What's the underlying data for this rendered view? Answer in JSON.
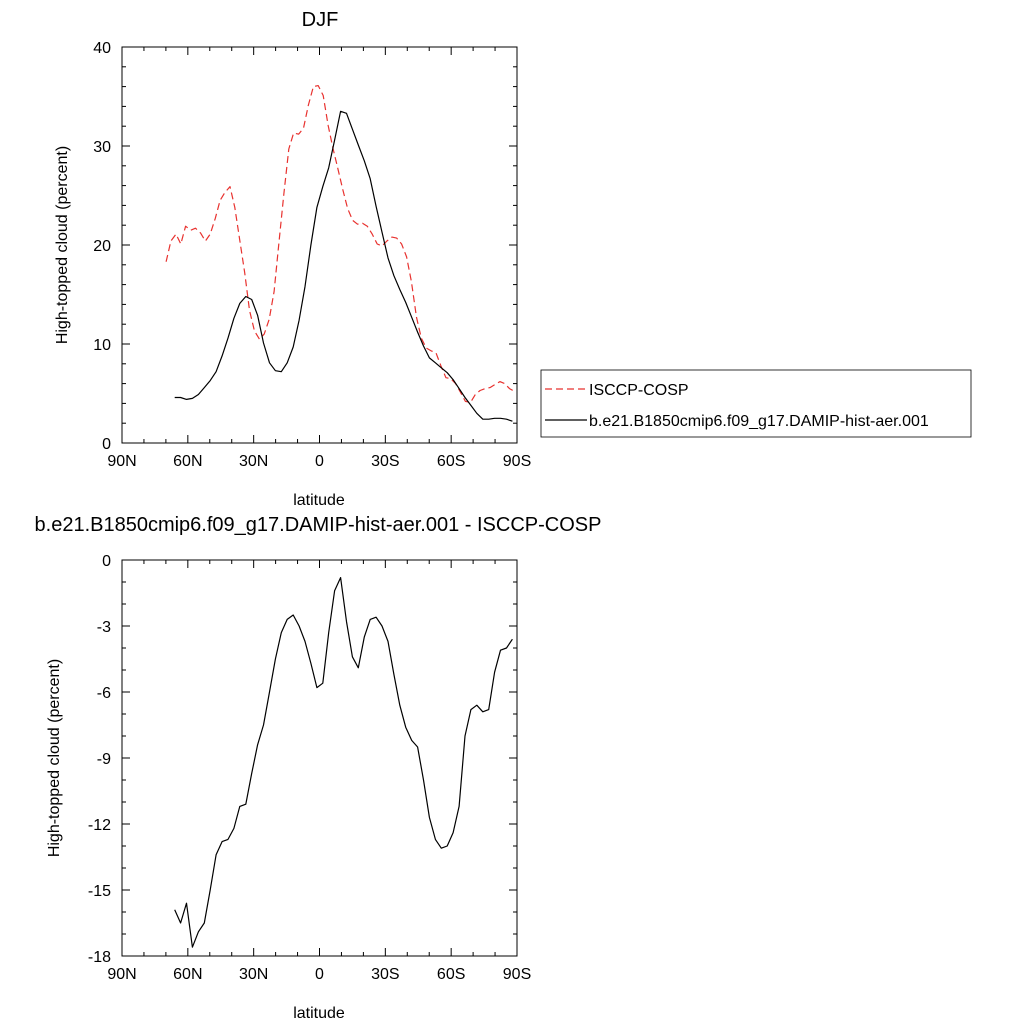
{
  "chart_data": [
    {
      "type": "line",
      "title": "DJF",
      "xlabel": "latitude",
      "ylabel": "High-topped cloud (percent)",
      "xlim": [
        90,
        -90
      ],
      "ylim": [
        0,
        40
      ],
      "xticks": [
        90,
        60,
        30,
        0,
        -30,
        -60,
        -90
      ],
      "xtick_labels": [
        "90N",
        "60N",
        "30N",
        "0",
        "30S",
        "60S",
        "90S"
      ],
      "yticks": [
        0,
        10,
        20,
        30,
        40
      ],
      "ytick_labels": [
        "0",
        "10",
        "20",
        "30",
        "40"
      ],
      "grid": false,
      "legend_position": "right, outside plot",
      "series": [
        {
          "name": "ISCCP-COSP",
          "color": "#e8322f",
          "dash": "dashed",
          "x": [
            69.9,
            67.7,
            65.4,
            63.2,
            61.0,
            58.7,
            56.5,
            54.2,
            52.0,
            49.8,
            47.5,
            45.3,
            43.1,
            40.8,
            38.6,
            36.4,
            34.1,
            31.9,
            29.6,
            27.4,
            25.2,
            22.9,
            20.7,
            18.5,
            16.2,
            14.0,
            11.8,
            9.5,
            7.3,
            5.1,
            2.8,
            0.6,
            -1.7,
            -3.9,
            -6.1,
            -8.4,
            -10.6,
            -12.8,
            -15.1,
            -17.3,
            -19.6,
            -21.8,
            -24.0,
            -26.3,
            -28.5,
            -30.7,
            -33.0,
            -35.2,
            -37.4,
            -39.7,
            -41.9,
            -44.2,
            -46.4,
            -48.6,
            -50.9,
            -53.1,
            -55.3,
            -57.6,
            -59.8,
            -62.0,
            -64.3,
            -66.5,
            -68.8,
            -71.0,
            -73.2,
            -75.5,
            -77.7,
            -79.9,
            -82.2,
            -84.4,
            -86.6,
            -88.9
          ],
          "y": [
            18.3,
            20.4,
            21.1,
            20.1,
            21.9,
            21.5,
            21.7,
            21.2,
            20.4,
            21.1,
            22.7,
            24.5,
            25.3,
            25.9,
            23.8,
            20.6,
            17.2,
            13.4,
            11.3,
            10.5,
            11.0,
            12.5,
            15.3,
            20.2,
            25.2,
            29.7,
            31.3,
            31.2,
            31.8,
            34.1,
            36.0,
            36.1,
            35.1,
            32.1,
            29.8,
            27.7,
            25.6,
            23.7,
            22.5,
            22.1,
            22.2,
            21.9,
            21.1,
            20.1,
            19.9,
            20.4,
            20.8,
            20.7,
            20.1,
            18.8,
            16.3,
            12.7,
            10.6,
            9.6,
            9.3,
            9.1,
            7.8,
            6.6,
            6.5,
            6.0,
            5.1,
            4.2,
            4.1,
            4.9,
            5.3,
            5.5,
            5.6,
            5.9,
            6.2,
            6.0,
            5.5,
            5.2
          ]
        },
        {
          "name": "b.e21.B1850cmip6.f09_g17.DAMIP-hist-aer.001",
          "color": "#000000",
          "dash": "solid",
          "x": [
            66.0,
            63.3,
            60.6,
            57.9,
            55.2,
            52.5,
            49.8,
            47.1,
            44.4,
            41.7,
            39.0,
            36.3,
            33.6,
            30.9,
            28.2,
            25.5,
            22.8,
            20.1,
            17.4,
            14.7,
            12.0,
            9.3,
            6.6,
            3.9,
            1.2,
            -1.5,
            -4.2,
            -6.9,
            -9.6,
            -12.3,
            -15.0,
            -17.7,
            -20.4,
            -23.1,
            -25.8,
            -28.5,
            -31.2,
            -33.9,
            -36.6,
            -39.3,
            -42.0,
            -44.7,
            -47.4,
            -50.1,
            -52.8,
            -55.5,
            -58.2,
            -60.9,
            -63.6,
            -66.3,
            -69.0,
            -71.7,
            -74.4,
            -77.1,
            -79.8,
            -82.5,
            -85.2,
            -87.9
          ],
          "y": [
            4.6,
            4.6,
            4.4,
            4.5,
            4.9,
            5.6,
            6.3,
            7.2,
            8.8,
            10.6,
            12.6,
            14.1,
            14.8,
            14.5,
            12.9,
            10.1,
            8.1,
            7.3,
            7.2,
            8.1,
            9.7,
            12.4,
            15.8,
            20.0,
            23.8,
            25.9,
            27.8,
            30.6,
            33.5,
            33.3,
            31.7,
            30.1,
            28.5,
            26.7,
            23.9,
            21.3,
            18.7,
            16.9,
            15.5,
            14.2,
            12.7,
            11.2,
            9.8,
            8.6,
            8.1,
            7.6,
            7.1,
            6.4,
            5.5,
            4.6,
            3.8,
            3.0,
            2.4,
            2.4,
            2.5,
            2.5,
            2.4,
            2.2
          ]
        }
      ]
    },
    {
      "type": "line",
      "title": "b.e21.B1850cmip6.f09_g17.DAMIP-hist-aer.001 - ISCCP-COSP",
      "xlabel": "latitude",
      "ylabel": "High-topped cloud (percent)",
      "xlim": [
        90,
        -90
      ],
      "ylim": [
        -18,
        0
      ],
      "xticks": [
        90,
        60,
        30,
        0,
        -30,
        -60,
        -90
      ],
      "xtick_labels": [
        "90N",
        "60N",
        "30N",
        "0",
        "30S",
        "60S",
        "90S"
      ],
      "yticks": [
        0,
        -3,
        -6,
        -9,
        -12,
        -15,
        -18
      ],
      "ytick_labels": [
        "0",
        "-3",
        "-6",
        "-9",
        "-12",
        "-15",
        "-18"
      ],
      "grid": false,
      "series": [
        {
          "color": "#000000",
          "dash": "solid",
          "x": [
            66.0,
            63.3,
            60.6,
            57.9,
            55.2,
            52.5,
            49.8,
            47.1,
            44.4,
            41.7,
            39.0,
            36.3,
            33.6,
            30.9,
            28.2,
            25.5,
            22.8,
            20.1,
            17.4,
            14.7,
            12.0,
            9.3,
            6.6,
            3.9,
            1.2,
            -1.5,
            -4.2,
            -6.9,
            -9.6,
            -12.3,
            -15.0,
            -17.7,
            -20.4,
            -23.1,
            -25.8,
            -28.5,
            -31.2,
            -33.9,
            -36.6,
            -39.3,
            -42.0,
            -44.7,
            -47.4,
            -50.1,
            -52.8,
            -55.5,
            -58.2,
            -60.9,
            -63.6,
            -66.3,
            -69.0,
            -71.7,
            -74.4,
            -77.1,
            -79.8,
            -82.5,
            -85.2,
            -87.9
          ],
          "y": [
            -15.9,
            -16.5,
            -15.6,
            -17.6,
            -16.9,
            -16.5,
            -15.0,
            -13.4,
            -12.8,
            -12.7,
            -12.2,
            -11.2,
            -11.1,
            -9.7,
            -8.4,
            -7.5,
            -6.0,
            -4.5,
            -3.3,
            -2.7,
            -2.5,
            -3.0,
            -3.7,
            -4.7,
            -5.8,
            -5.6,
            -3.3,
            -1.4,
            -0.8,
            -2.8,
            -4.4,
            -4.9,
            -3.5,
            -2.7,
            -2.6,
            -3.0,
            -3.7,
            -5.2,
            -6.6,
            -7.6,
            -8.2,
            -8.5,
            -10.0,
            -11.7,
            -12.7,
            -13.1,
            -13.0,
            -12.4,
            -11.2,
            -8.0,
            -6.8,
            -6.6,
            -6.9,
            -6.8,
            -5.1,
            -4.1,
            -4.0,
            -3.6
          ]
        }
      ]
    }
  ]
}
